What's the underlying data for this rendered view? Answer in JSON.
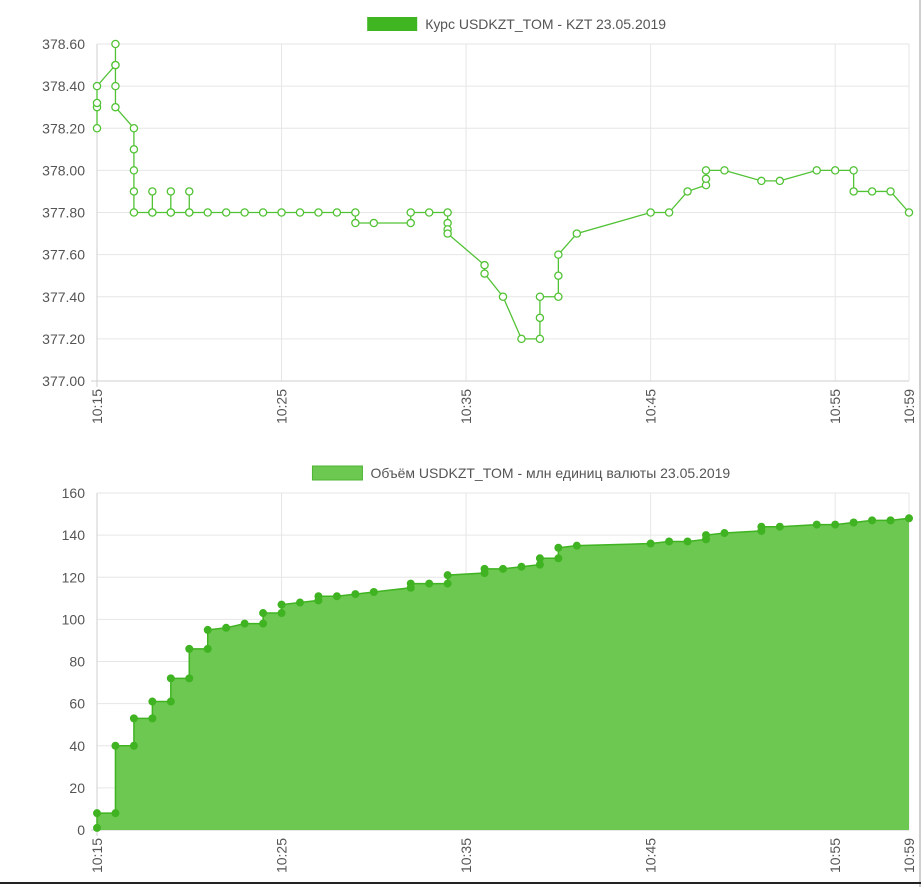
{
  "colors": {
    "price_line": "#52c235",
    "price_legend": "#3fb621",
    "volume_fill": "#6cc850",
    "volume_line": "#3fb321",
    "volume_legend": "#6cc850"
  },
  "chart_data": [
    {
      "type": "line",
      "title": "",
      "legend": [
        "Курс USDKZT_TOM - KZT 23.05.2019"
      ],
      "legend_position": "top",
      "xlabel": "",
      "ylabel": "",
      "ylim": [
        377.0,
        378.6
      ],
      "yticks": [
        "378.60",
        "378.40",
        "378.20",
        "378.00",
        "377.80",
        "377.60",
        "377.40",
        "377.20",
        "377.00"
      ],
      "xlim": [
        "10:15",
        "10:59"
      ],
      "xticks": [
        "10:15",
        "10:25",
        "10:35",
        "10:45",
        "10:55",
        "10:59"
      ],
      "grid": true,
      "series": [
        {
          "name": "Курс USDKZT_TOM - KZT 23.05.2019",
          "points": [
            [
              "10:15:00",
              378.2
            ],
            [
              "10:15:00",
              378.3
            ],
            [
              "10:15:00",
              378.32
            ],
            [
              "10:15:00",
              378.4
            ],
            [
              "10:16:00",
              378.5
            ],
            [
              "10:16:00",
              378.6
            ],
            [
              "10:16:00",
              378.5
            ],
            [
              "10:16:00",
              378.4
            ],
            [
              "10:16:00",
              378.3
            ],
            [
              "10:17:00",
              378.2
            ],
            [
              "10:17:00",
              378.1
            ],
            [
              "10:17:00",
              378.0
            ],
            [
              "10:17:00",
              377.9
            ],
            [
              "10:17:00",
              377.8
            ],
            [
              "10:18:00",
              377.8
            ],
            [
              "10:18:00",
              377.9
            ],
            [
              "10:18:00",
              377.8
            ],
            [
              "10:19:00",
              377.8
            ],
            [
              "10:19:00",
              377.9
            ],
            [
              "10:19:00",
              377.8
            ],
            [
              "10:20:00",
              377.8
            ],
            [
              "10:20:00",
              377.9
            ],
            [
              "10:20:00",
              377.8
            ],
            [
              "10:21:00",
              377.8
            ],
            [
              "10:22:00",
              377.8
            ],
            [
              "10:23:00",
              377.8
            ],
            [
              "10:24:00",
              377.8
            ],
            [
              "10:25:00",
              377.8
            ],
            [
              "10:26:00",
              377.8
            ],
            [
              "10:27:00",
              377.8
            ],
            [
              "10:28:00",
              377.8
            ],
            [
              "10:29:00",
              377.8
            ],
            [
              "10:29:00",
              377.75
            ],
            [
              "10:30:00",
              377.75
            ],
            [
              "10:32:00",
              377.75
            ],
            [
              "10:32:00",
              377.8
            ],
            [
              "10:33:00",
              377.8
            ],
            [
              "10:34:00",
              377.8
            ],
            [
              "10:34:00",
              377.75
            ],
            [
              "10:34:00",
              377.72
            ],
            [
              "10:34:00",
              377.7
            ],
            [
              "10:36:00",
              377.55
            ],
            [
              "10:36:00",
              377.51
            ],
            [
              "10:37:00",
              377.4
            ],
            [
              "10:38:00",
              377.2
            ],
            [
              "10:39:00",
              377.2
            ],
            [
              "10:39:00",
              377.3
            ],
            [
              "10:39:00",
              377.4
            ],
            [
              "10:40:00",
              377.4
            ],
            [
              "10:40:00",
              377.5
            ],
            [
              "10:40:00",
              377.6
            ],
            [
              "10:41:00",
              377.7
            ],
            [
              "10:45:00",
              377.8
            ],
            [
              "10:46:00",
              377.8
            ],
            [
              "10:47:00",
              377.9
            ],
            [
              "10:48:00",
              377.93
            ],
            [
              "10:48:00",
              377.96
            ],
            [
              "10:48:00",
              378.0
            ],
            [
              "10:49:00",
              378.0
            ],
            [
              "10:51:00",
              377.95
            ],
            [
              "10:52:00",
              377.95
            ],
            [
              "10:54:00",
              378.0
            ],
            [
              "10:55:00",
              378.0
            ],
            [
              "10:56:00",
              378.0
            ],
            [
              "10:56:00",
              377.9
            ],
            [
              "10:57:00",
              377.9
            ],
            [
              "10:58:00",
              377.9
            ],
            [
              "10:59:00",
              377.8
            ]
          ]
        }
      ]
    },
    {
      "type": "area",
      "title": "",
      "legend": [
        "Объём USDKZT_TOM - млн единиц валюты 23.05.2019"
      ],
      "legend_position": "top",
      "xlabel": "",
      "ylabel": "",
      "ylim": [
        0,
        160
      ],
      "yticks": [
        "160",
        "140",
        "120",
        "100",
        "80",
        "60",
        "40",
        "20",
        "0"
      ],
      "xlim": [
        "10:15",
        "10:59"
      ],
      "xticks": [
        "10:15",
        "10:25",
        "10:35",
        "10:45",
        "10:55",
        "10:59"
      ],
      "grid": true,
      "series": [
        {
          "name": "Объём USDKZT_TOM - млн единиц валюты 23.05.2019",
          "points": [
            [
              "10:15:00",
              1
            ],
            [
              "10:15:00",
              8
            ],
            [
              "10:16:00",
              8
            ],
            [
              "10:16:00",
              40
            ],
            [
              "10:17:00",
              40
            ],
            [
              "10:17:00",
              53
            ],
            [
              "10:18:00",
              53
            ],
            [
              "10:18:00",
              61
            ],
            [
              "10:19:00",
              61
            ],
            [
              "10:19:00",
              72
            ],
            [
              "10:20:00",
              72
            ],
            [
              "10:20:00",
              86
            ],
            [
              "10:21:00",
              86
            ],
            [
              "10:21:00",
              95
            ],
            [
              "10:22:00",
              96
            ],
            [
              "10:23:00",
              98
            ],
            [
              "10:24:00",
              98
            ],
            [
              "10:24:00",
              103
            ],
            [
              "10:25:00",
              103
            ],
            [
              "10:25:00",
              107
            ],
            [
              "10:26:00",
              108
            ],
            [
              "10:27:00",
              109
            ],
            [
              "10:27:00",
              111
            ],
            [
              "10:28:00",
              111
            ],
            [
              "10:29:00",
              112
            ],
            [
              "10:30:00",
              113
            ],
            [
              "10:32:00",
              115
            ],
            [
              "10:32:00",
              117
            ],
            [
              "10:33:00",
              117
            ],
            [
              "10:34:00",
              117
            ],
            [
              "10:34:00",
              121
            ],
            [
              "10:36:00",
              122
            ],
            [
              "10:36:00",
              124
            ],
            [
              "10:37:00",
              124
            ],
            [
              "10:38:00",
              125
            ],
            [
              "10:39:00",
              126
            ],
            [
              "10:39:00",
              129
            ],
            [
              "10:40:00",
              129
            ],
            [
              "10:40:00",
              134
            ],
            [
              "10:41:00",
              135
            ],
            [
              "10:45:00",
              136
            ],
            [
              "10:46:00",
              137
            ],
            [
              "10:47:00",
              137
            ],
            [
              "10:48:00",
              138
            ],
            [
              "10:48:00",
              140
            ],
            [
              "10:49:00",
              141
            ],
            [
              "10:51:00",
              142
            ],
            [
              "10:51:00",
              144
            ],
            [
              "10:52:00",
              144
            ],
            [
              "10:54:00",
              145
            ],
            [
              "10:55:00",
              145
            ],
            [
              "10:56:00",
              146
            ],
            [
              "10:57:00",
              147
            ],
            [
              "10:58:00",
              147
            ],
            [
              "10:59:00",
              148
            ]
          ]
        }
      ]
    }
  ]
}
